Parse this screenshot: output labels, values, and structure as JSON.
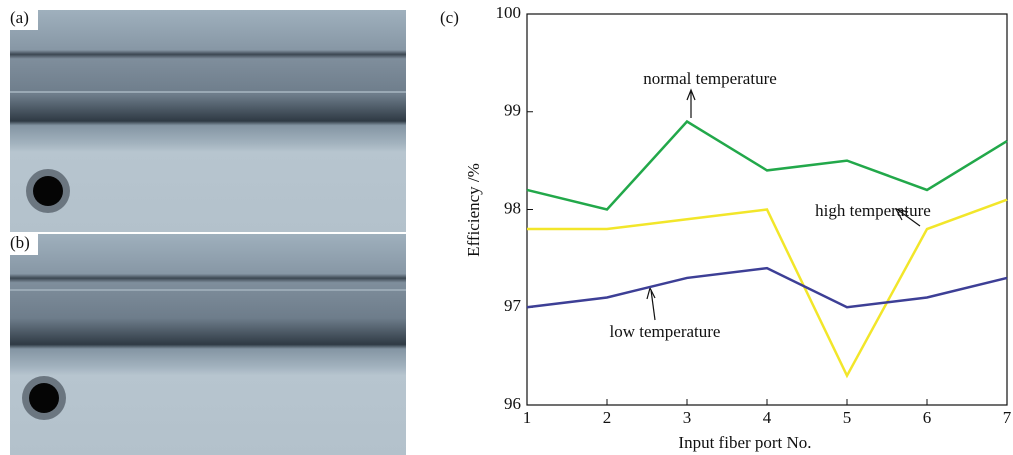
{
  "panels": [
    "(a)",
    "(b)"
  ],
  "chart_data": {
    "type": "line",
    "panel": "(c)",
    "x_label": "Input fiber port No.",
    "y_label": "Efficiency /%",
    "x": [
      1,
      2,
      3,
      4,
      5,
      6,
      7
    ],
    "xlim": [
      1,
      7
    ],
    "xticks": [
      1,
      2,
      3,
      4,
      5,
      6,
      7
    ],
    "ylim": [
      96,
      100
    ],
    "yticks": [
      96,
      97,
      98,
      99,
      100
    ],
    "series": [
      {
        "name": "normal temperature",
        "color": "#22a84a",
        "values": [
          98.2,
          98.0,
          98.9,
          98.4,
          98.5,
          98.2,
          98.7
        ]
      },
      {
        "name": "high temperature",
        "color": "#f2e62a",
        "values": [
          97.8,
          97.8,
          97.9,
          98.0,
          96.3,
          97.8,
          98.1
        ]
      },
      {
        "name": "low temperature",
        "color": "#3d3f96",
        "values": [
          97.0,
          97.1,
          97.3,
          97.4,
          97.0,
          97.1,
          97.3
        ]
      }
    ]
  }
}
